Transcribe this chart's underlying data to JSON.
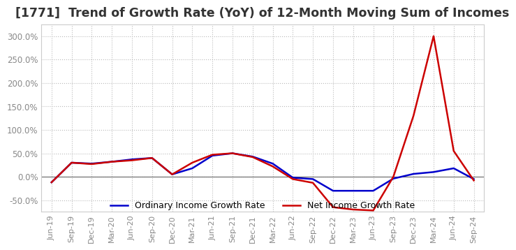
{
  "title": "[1771]  Trend of Growth Rate (YoY) of 12-Month Moving Sum of Incomes",
  "x_labels": [
    "Jun-19",
    "Sep-19",
    "Dec-19",
    "Mar-20",
    "Jun-20",
    "Sep-20",
    "Dec-20",
    "Mar-21",
    "Jun-21",
    "Sep-21",
    "Dec-21",
    "Mar-22",
    "Jun-22",
    "Sep-22",
    "Dec-22",
    "Mar-23",
    "Jun-23",
    "Sep-23",
    "Dec-23",
    "Mar-24",
    "Jun-24",
    "Sep-24"
  ],
  "ordinary_income": [
    -0.12,
    0.3,
    0.28,
    0.32,
    0.37,
    0.4,
    0.05,
    0.18,
    0.45,
    0.5,
    0.43,
    0.28,
    -0.02,
    -0.05,
    -0.3,
    -0.3,
    -0.3,
    -0.04,
    0.06,
    0.1,
    0.18,
    -0.05
  ],
  "net_income": [
    -0.12,
    0.3,
    0.27,
    0.32,
    0.35,
    0.4,
    0.05,
    0.3,
    0.47,
    0.5,
    0.42,
    0.22,
    -0.05,
    -0.13,
    -0.65,
    -0.7,
    -0.72,
    0.0,
    1.3,
    3.0,
    0.55,
    -0.08
  ],
  "ordinary_color": "#0000cc",
  "net_color": "#cc0000",
  "ylim_min": -0.75,
  "ylim_max": 3.25,
  "yticks": [
    -0.5,
    0.0,
    0.5,
    1.0,
    1.5,
    2.0,
    2.5,
    3.0
  ],
  "background_color": "#ffffff",
  "grid_color": "#bbbbbb",
  "tick_color": "#888888",
  "title_color": "#333333",
  "legend_ordinary": "Ordinary Income Growth Rate",
  "legend_net": "Net Income Growth Rate",
  "line_width": 1.8,
  "title_fontsize": 12.5
}
